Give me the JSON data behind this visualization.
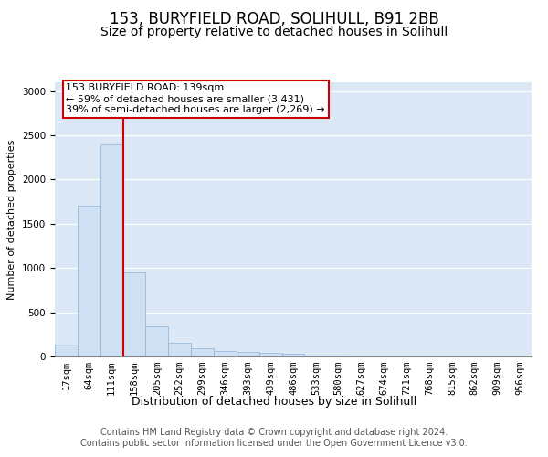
{
  "title1": "153, BURYFIELD ROAD, SOLIHULL, B91 2BB",
  "title2": "Size of property relative to detached houses in Solihull",
  "xlabel": "Distribution of detached houses by size in Solihull",
  "ylabel": "Number of detached properties",
  "categories": [
    "17sqm",
    "64sqm",
    "111sqm",
    "158sqm",
    "205sqm",
    "252sqm",
    "299sqm",
    "346sqm",
    "393sqm",
    "439sqm",
    "486sqm",
    "533sqm",
    "580sqm",
    "627sqm",
    "674sqm",
    "721sqm",
    "768sqm",
    "815sqm",
    "862sqm",
    "909sqm",
    "956sqm"
  ],
  "values": [
    130,
    1700,
    2400,
    950,
    340,
    150,
    90,
    65,
    50,
    40,
    30,
    15,
    8,
    5,
    3,
    2,
    1,
    1,
    0,
    0,
    0
  ],
  "bar_color": "#cfe0f3",
  "bar_edge_color": "#8ab4d8",
  "vline_x_index": 2,
  "vline_color": "#cc0000",
  "annotation_text": "153 BURYFIELD ROAD: 139sqm\n← 59% of detached houses are smaller (3,431)\n39% of semi-detached houses are larger (2,269) →",
  "annotation_box_color": "white",
  "annotation_box_edge_color": "#cc0000",
  "ylim": [
    0,
    3100
  ],
  "yticks": [
    0,
    500,
    1000,
    1500,
    2000,
    2500,
    3000
  ],
  "background_color": "#dce8f5",
  "footer_text": "Contains HM Land Registry data © Crown copyright and database right 2024.\nContains public sector information licensed under the Open Government Licence v3.0.",
  "title1_fontsize": 12,
  "title2_fontsize": 10,
  "xlabel_fontsize": 9,
  "ylabel_fontsize": 8,
  "tick_fontsize": 7.5,
  "footer_fontsize": 7,
  "annotation_fontsize": 8
}
